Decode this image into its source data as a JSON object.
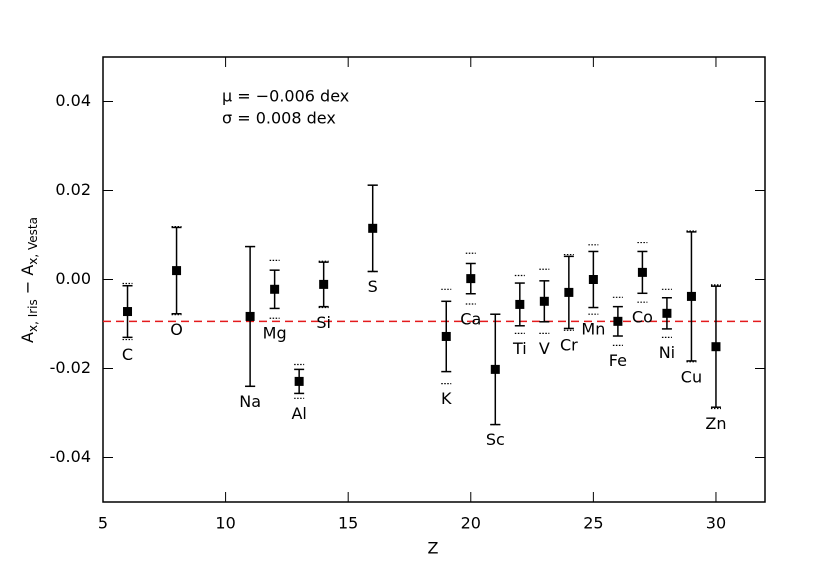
{
  "chart_data": {
    "type": "scatter",
    "xlabel": "Z",
    "ylabel_parts": [
      "A",
      "x, Iris",
      " − A",
      "x, Vesta"
    ],
    "annotations": [
      "μ  =  −0.006 dex",
      "σ  =   0.008 dex"
    ],
    "x": [
      6,
      8,
      11,
      12,
      13,
      14,
      16,
      19,
      20,
      21,
      22,
      23,
      24,
      25,
      26,
      27,
      28,
      29,
      30
    ],
    "labels": [
      "C",
      "O",
      "Na",
      "Mg",
      "Al",
      "Si",
      "S",
      "K",
      "Ca",
      "Sc",
      "Ti",
      "V",
      "Cr",
      "Mn",
      "Fe",
      "Co",
      "Ni",
      "Cu",
      "Zn"
    ],
    "values": [
      -0.0072,
      0.002,
      -0.0083,
      -0.0022,
      -0.0229,
      -0.0011,
      0.0115,
      -0.0128,
      0.0002,
      -0.0202,
      -0.0056,
      -0.0049,
      -0.0029,
      0.0,
      -0.0094,
      0.0016,
      -0.0076,
      -0.0038,
      -0.0151
    ],
    "errors": [
      0.0058,
      0.0097,
      0.0157,
      0.0043,
      0.0027,
      0.005,
      0.0097,
      0.0079,
      0.0034,
      0.0124,
      0.0048,
      0.0046,
      0.0081,
      0.0063,
      0.0033,
      0.0047,
      0.0035,
      0.0145,
      0.0136
    ],
    "errors2": [
      0.0063,
      0.0099,
      0.0157,
      0.0065,
      0.0038,
      0.0052,
      0.0097,
      0.0106,
      0.0057,
      0.0124,
      0.0065,
      0.0072,
      0.0085,
      0.0078,
      0.0054,
      0.0067,
      0.0054,
      0.0147,
      0.0139
    ],
    "color": "#000000",
    "hline": -0.0094,
    "hline_color": "#e41a1c",
    "xlim": [
      5,
      32
    ],
    "xticks": [
      5,
      10,
      15,
      20,
      25,
      30
    ],
    "ylim": [
      -0.05,
      0.05
    ],
    "yticks": [
      -0.04,
      -0.02,
      {
        "value": 0,
        "label": "0.00"
      },
      0.02,
      0.04
    ]
  }
}
